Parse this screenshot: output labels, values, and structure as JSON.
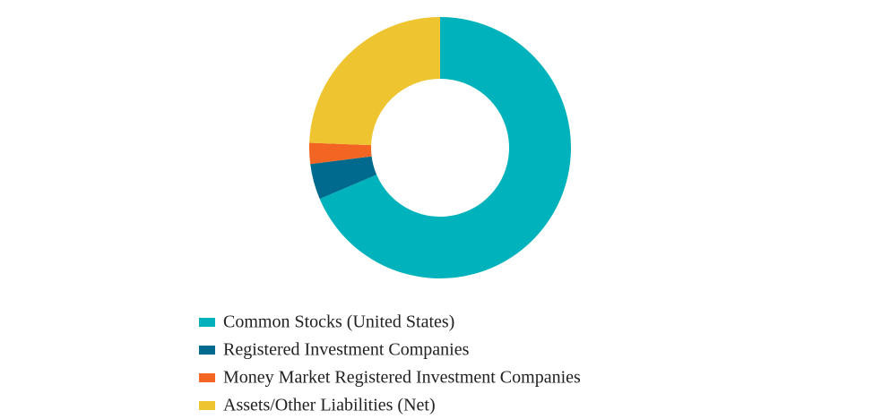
{
  "chart_data": {
    "type": "donut",
    "categories": [
      "Common Stocks (United States)",
      "Registered Investment Companies",
      "Money Market Registered Investment Companies",
      "Assets/Other Liabilities (Net)"
    ],
    "values": [
      68.6,
      4.4,
      2.6,
      24.4
    ],
    "colors": [
      "#00b2bb",
      "#006a8e",
      "#f26522",
      "#eec531"
    ]
  }
}
